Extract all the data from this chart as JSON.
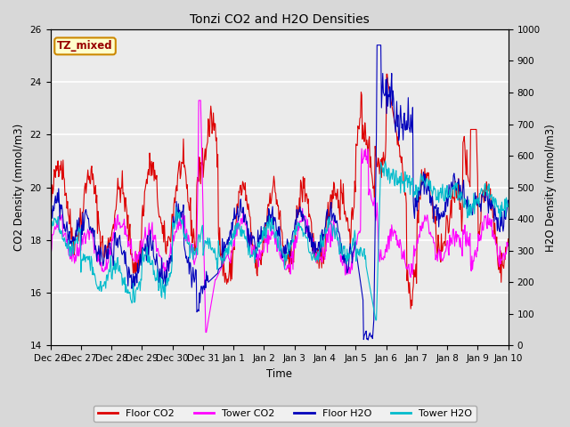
{
  "title": "Tonzi CO2 and H2O Densities",
  "xlabel": "Time",
  "ylabel_left": "CO2 Density (mmol/m3)",
  "ylabel_right": "H2O Density (mmol/m3)",
  "ylim_left": [
    14,
    26
  ],
  "ylim_right": [
    0,
    1000
  ],
  "yticks_left": [
    14,
    16,
    18,
    20,
    22,
    24,
    26
  ],
  "yticks_right": [
    0,
    100,
    200,
    300,
    400,
    500,
    600,
    700,
    800,
    900,
    1000
  ],
  "xtick_labels": [
    "Dec 26",
    "Dec 27",
    "Dec 28",
    "Dec 29",
    "Dec 30",
    "Dec 31",
    "Jan 1",
    "Jan 2",
    "Jan 3",
    "Jan 4",
    "Jan 5",
    "Jan 6",
    "Jan 7",
    "Jan 8",
    "Jan 9",
    "Jan 10"
  ],
  "annotation_text": "TZ_mixed",
  "annotation_color": "#990000",
  "annotation_bg": "#ffffcc",
  "annotation_border": "#cc8800",
  "colors": {
    "floor_co2": "#dd0000",
    "tower_co2": "#ff00ff",
    "floor_h2o": "#0000bb",
    "tower_h2o": "#00bbcc"
  },
  "legend_labels": [
    "Floor CO2",
    "Tower CO2",
    "Floor H2O",
    "Tower H2O"
  ],
  "bg_color": "#d8d8d8",
  "plot_bg": "#ebebeb",
  "grid_color": "#ffffff",
  "linewidth": 0.8,
  "figsize": [
    6.4,
    4.8
  ],
  "dpi": 100
}
